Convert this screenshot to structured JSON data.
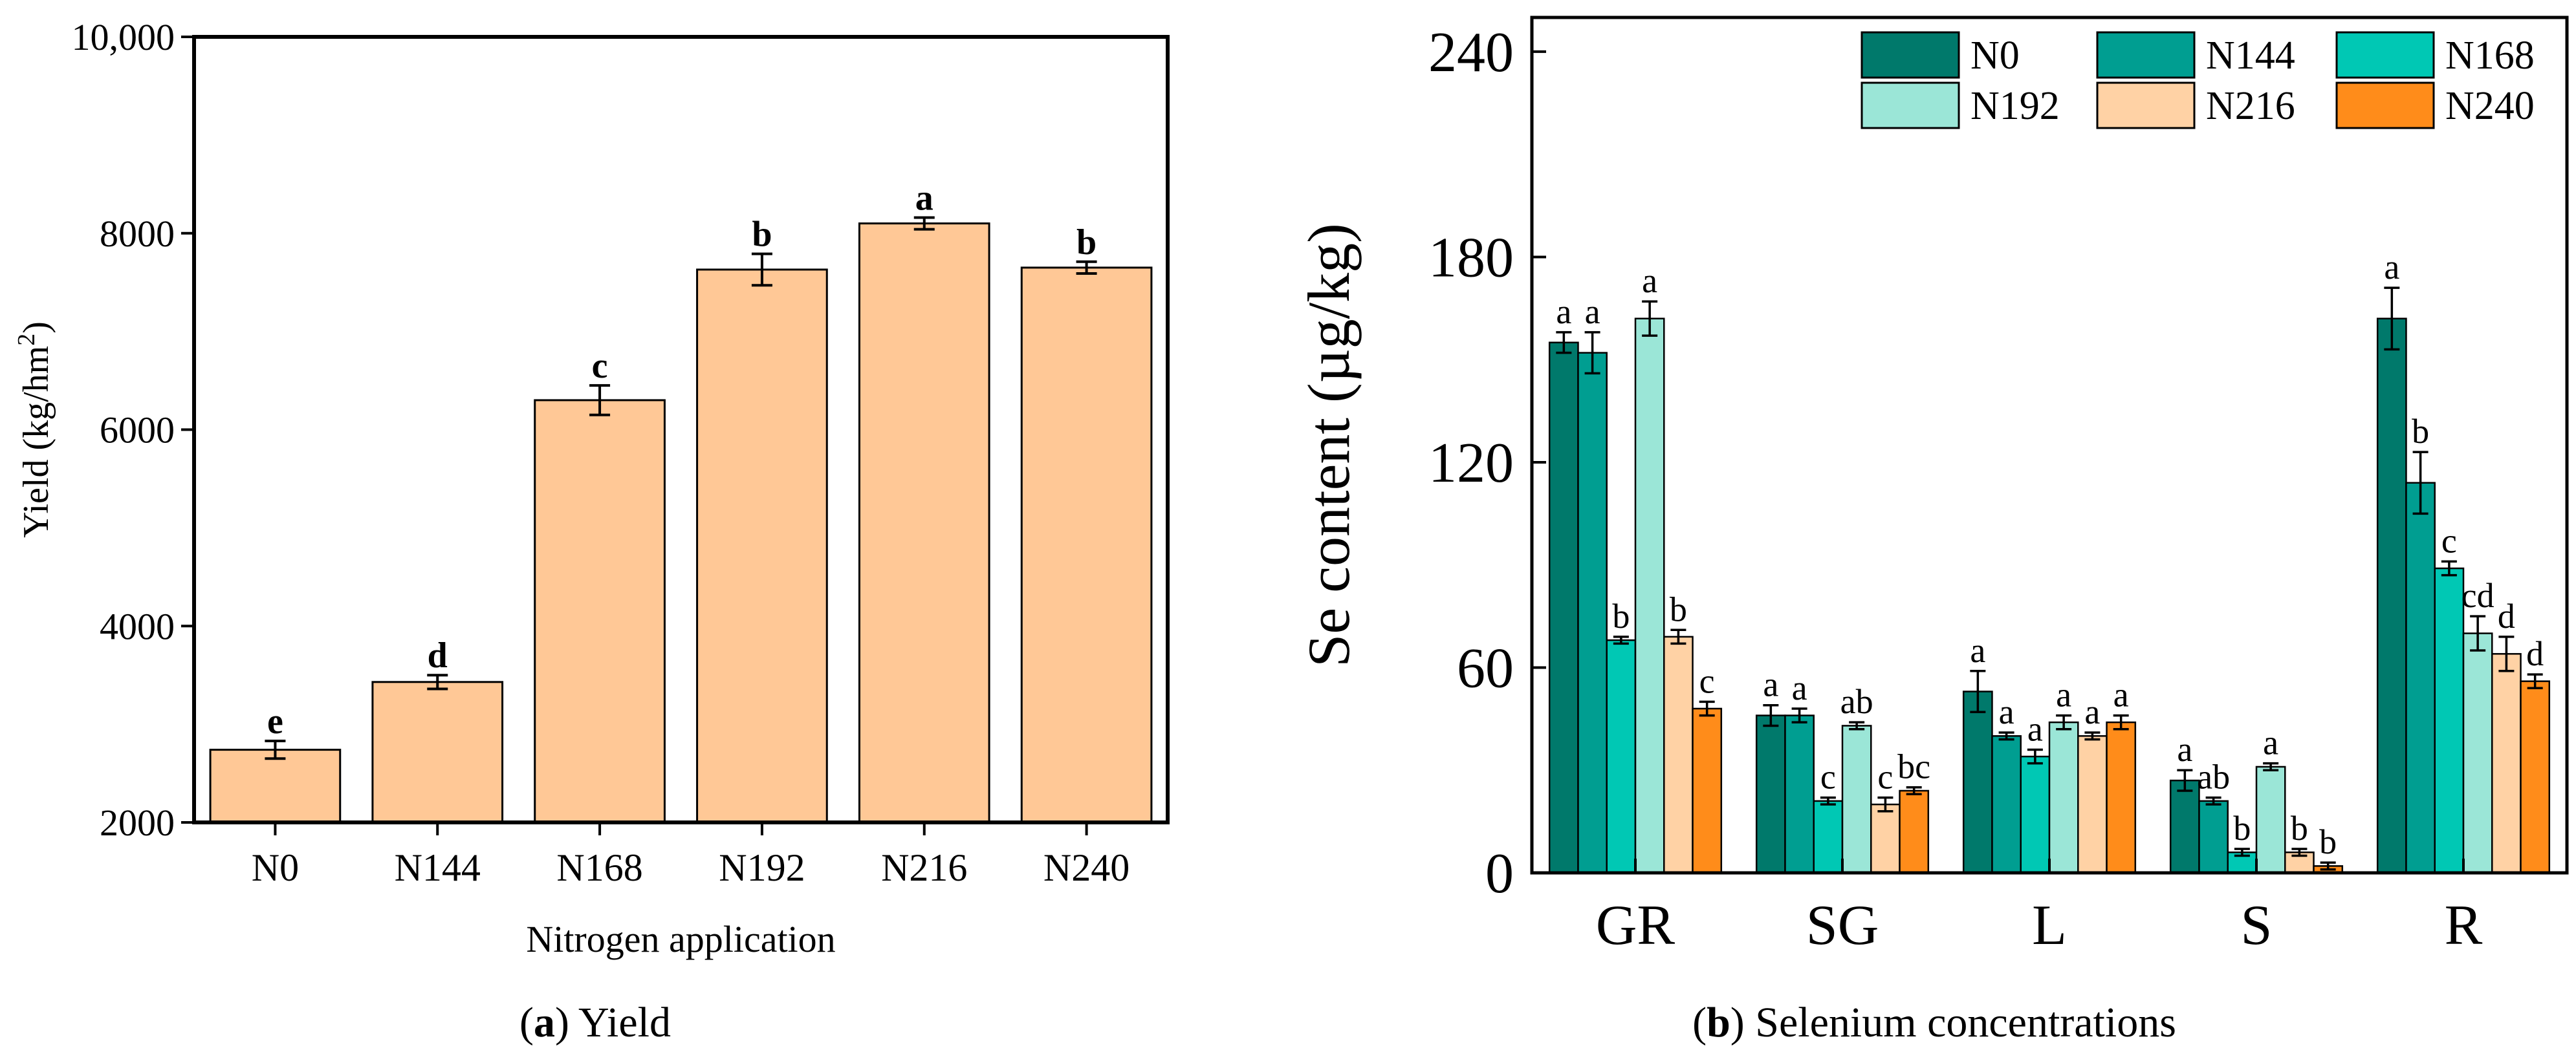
{
  "chart_data": [
    {
      "type": "bar",
      "caption_letter": "a",
      "caption_text": " Yield",
      "xlabel": "Nitrogen application",
      "ylabel_main": "Yield (kg/hm",
      "ylabel_sup": "2",
      "ylabel_end": ")",
      "ylim": [
        2000,
        10000
      ],
      "yticks": [
        2000,
        4000,
        6000,
        8000,
        10000
      ],
      "ytick_labels": [
        "2000",
        "4000",
        "6000",
        "8000",
        "10,000"
      ],
      "categories": [
        "N0",
        "N144",
        "N168",
        "N192",
        "N216",
        "N240"
      ],
      "values": [
        2740,
        3430,
        6300,
        7630,
        8100,
        7650
      ],
      "errors": [
        90,
        70,
        150,
        160,
        60,
        60
      ],
      "letters": [
        "e",
        "d",
        "c",
        "b",
        "a",
        "b"
      ],
      "bar_color": "#FFC896"
    },
    {
      "type": "bar",
      "caption_letter": "b",
      "caption_text": " Selenium concentrations",
      "ylabel": "Se content (µg/kg)",
      "ylim": [
        0,
        250
      ],
      "yticks": [
        0,
        60,
        120,
        180,
        240
      ],
      "ytick_labels": [
        "0",
        "60",
        "120",
        "180",
        "240"
      ],
      "categories": [
        "GR",
        "SG",
        "L",
        "S",
        "R"
      ],
      "series": [
        {
          "name": "N0",
          "color": "#00796B",
          "values": [
            155,
            46,
            53,
            27,
            162
          ],
          "errors": [
            3,
            3,
            6,
            3,
            9
          ],
          "letters": [
            "a",
            "a",
            "a",
            "a",
            "a"
          ]
        },
        {
          "name": "N144",
          "color": "#009E91",
          "values": [
            152,
            46,
            40,
            21,
            114
          ],
          "errors": [
            6,
            2,
            1,
            1,
            9
          ],
          "letters": [
            "a",
            "a",
            "a",
            "ab",
            "b"
          ]
        },
        {
          "name": "N168",
          "color": "#00C8B4",
          "values": [
            68,
            21,
            34,
            6,
            89
          ],
          "errors": [
            1,
            1,
            2,
            1,
            2
          ],
          "letters": [
            "b",
            "c",
            "a",
            "b",
            "c"
          ]
        },
        {
          "name": "N192",
          "color": "#9BE6D7",
          "values": [
            162,
            43,
            44,
            31,
            70
          ],
          "errors": [
            5,
            1,
            2,
            1,
            5
          ],
          "letters": [
            "a",
            "ab",
            "a",
            "a",
            "cd"
          ]
        },
        {
          "name": "N216",
          "color": "#FFD2A5",
          "values": [
            69,
            20,
            40,
            6,
            64
          ],
          "errors": [
            2,
            2,
            1,
            1,
            5
          ],
          "letters": [
            "b",
            "c",
            "a",
            "b",
            "d"
          ]
        },
        {
          "name": "N240",
          "color": "#FF8C1A",
          "values": [
            48,
            24,
            44,
            2,
            56
          ],
          "errors": [
            2,
            1,
            2,
            1,
            2
          ],
          "letters": [
            "c",
            "bc",
            "a",
            "b",
            "d"
          ]
        }
      ],
      "legend_position": "top-right"
    }
  ]
}
